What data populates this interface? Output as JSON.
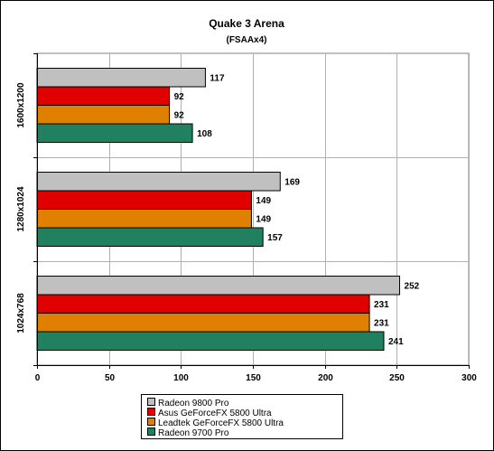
{
  "chart_data": {
    "type": "bar",
    "orientation": "horizontal",
    "title": "Quake 3 Arena",
    "subtitle": "(FSAAx4)",
    "categories": [
      "1600x1200",
      "1280x1024",
      "1024x768"
    ],
    "series": [
      {
        "name": "Radeon 9800 Pro",
        "color": "#c0c0c0",
        "values": [
          117,
          169,
          252
        ]
      },
      {
        "name": "Asus GeForceFX 5800 Ultra",
        "color": "#e00000",
        "values": [
          92,
          149,
          231
        ]
      },
      {
        "name": "Leadtek GeForceFX 5800 Ultra",
        "color": "#e08000",
        "values": [
          92,
          149,
          231
        ]
      },
      {
        "name": "Radeon 9700 Pro",
        "color": "#208060",
        "values": [
          108,
          157,
          241
        ]
      }
    ],
    "xlim": [
      0,
      300
    ],
    "xticks": [
      0,
      50,
      100,
      150,
      200,
      250,
      300
    ],
    "grid": true,
    "legend_position": "bottom"
  }
}
